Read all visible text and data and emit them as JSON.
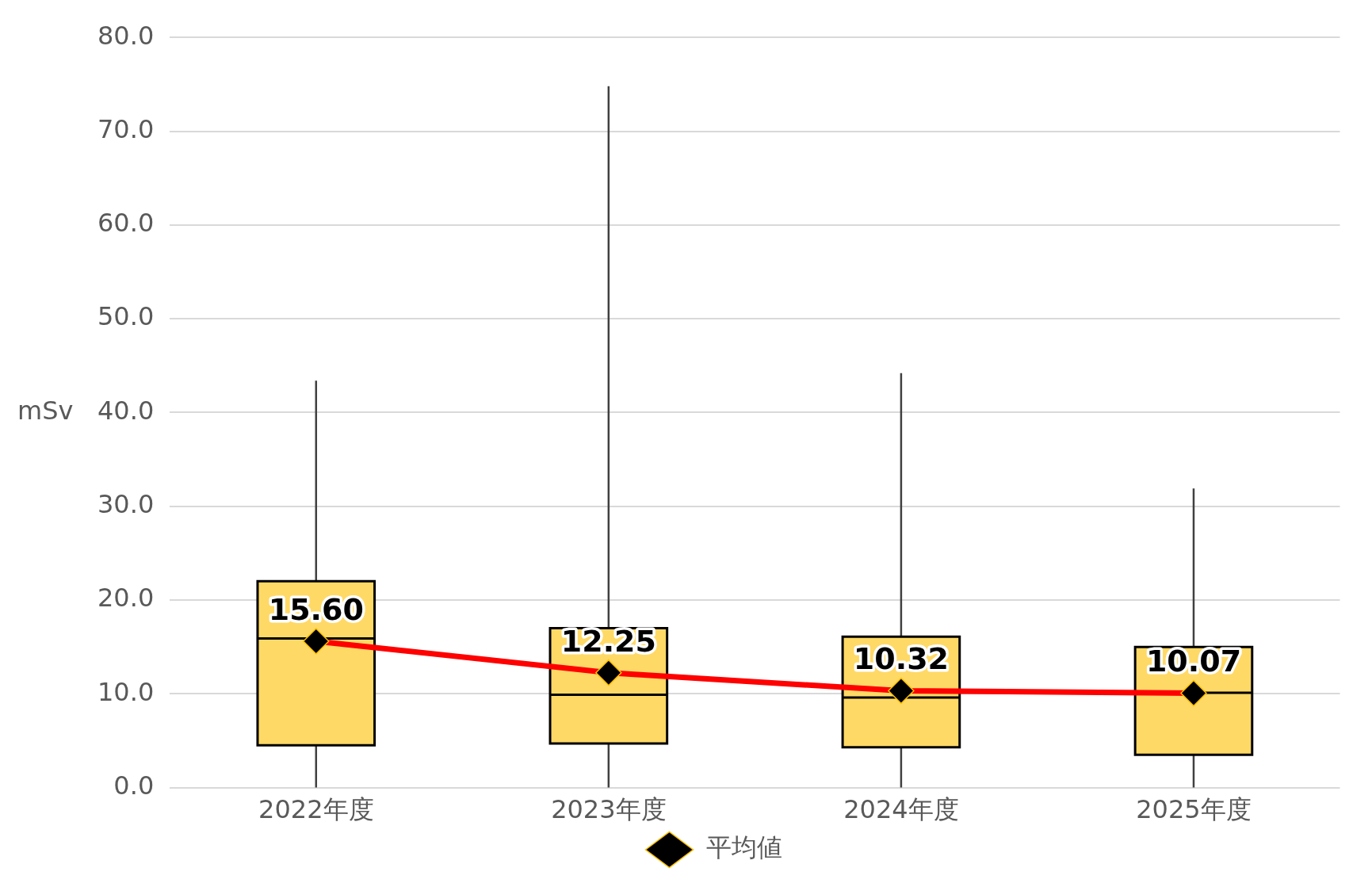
{
  "chart_data": {
    "type": "box",
    "ylabel": "mSv",
    "categories": [
      "2022年度",
      "2023年度",
      "2024年度",
      "2025年度"
    ],
    "ylim": [
      0,
      80
    ],
    "yticks": [
      {
        "value": 0,
        "label": "0.0"
      },
      {
        "value": 10,
        "label": "10.0"
      },
      {
        "value": 20,
        "label": "20.0"
      },
      {
        "value": 30,
        "label": "30.0"
      },
      {
        "value": 40,
        "label": "40.0"
      },
      {
        "value": 50,
        "label": "50.0"
      },
      {
        "value": 60,
        "label": "60.0"
      },
      {
        "value": 70,
        "label": "70.0"
      },
      {
        "value": 80,
        "label": "80.0"
      }
    ],
    "grid": "y",
    "legend": "bottom",
    "marker": "diamond",
    "series": [
      {
        "color": "#ffd966",
        "boxes": [
          {
            "low": 0,
            "q1": 4.5,
            "median": 15.9,
            "q3": 22.0,
            "high": 43.4
          },
          {
            "low": 0,
            "q1": 4.7,
            "median": 9.9,
            "q3": 17.0,
            "high": 74.8
          },
          {
            "low": 0,
            "q1": 4.3,
            "median": 9.6,
            "q3": 16.1,
            "high": 44.2
          },
          {
            "low": 0,
            "q1": 3.5,
            "median": 10.1,
            "q3": 15.0,
            "high": 31.9
          }
        ]
      },
      {
        "type": "line",
        "name": "平均値",
        "color": "#ff0000",
        "values": [
          15.6,
          12.25,
          10.32,
          10.07
        ],
        "value_labels": [
          "15.60",
          "12.25",
          "10.32",
          "10.07"
        ]
      }
    ]
  }
}
